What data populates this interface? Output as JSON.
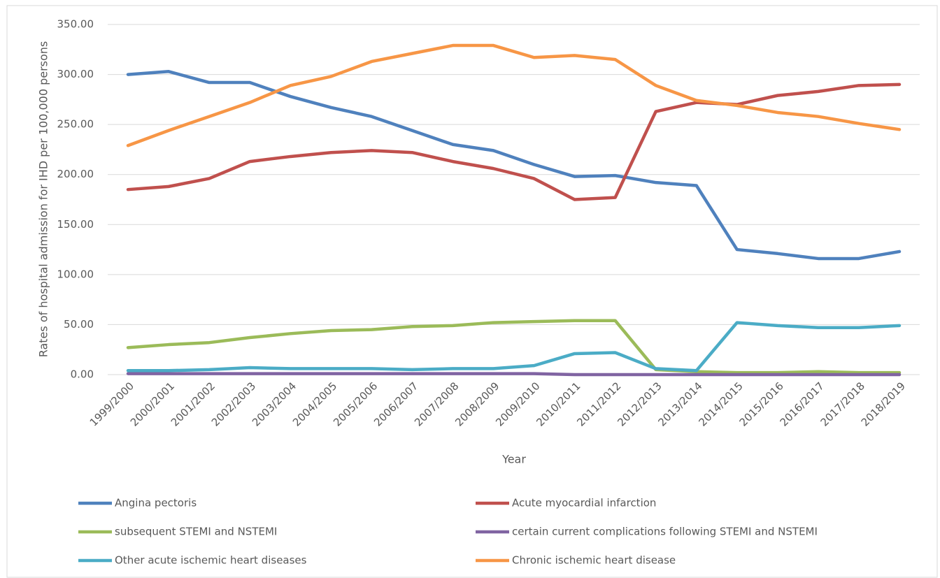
{
  "chart_data": {
    "type": "line",
    "y_label": "Rates of hospital admission for IHD per 100,000 persons",
    "x_label": "Year",
    "categories": [
      "1999/2000",
      "2000/2001",
      "2001/2002",
      "2002/2003",
      "2003/2004",
      "2004/2005",
      "2005/2006",
      "2006/2007",
      "2007/2008",
      "2008/2009",
      "2009/2010",
      "2010/2011",
      "2011/2012",
      "2012/2013",
      "2013/2014",
      "2014/2015",
      "2015/2016",
      "2016/2017",
      "2017/2018",
      "2018/2019"
    ],
    "series": [
      {
        "name": "Angina pectoris",
        "color": "#4f81bd",
        "values": [
          300,
          303,
          292,
          292,
          278,
          267,
          258,
          244,
          230,
          224,
          210,
          198,
          199,
          192,
          189,
          125,
          121,
          116,
          116,
          123
        ]
      },
      {
        "name": "Acute myocardial infarction",
        "color": "#c0504d",
        "values": [
          185,
          188,
          196,
          213,
          218,
          222,
          224,
          222,
          213,
          206,
          196,
          175,
          177,
          263,
          272,
          270,
          279,
          283,
          289,
          290
        ]
      },
      {
        "name": "subsequent STEMI and NSTEMI",
        "color": "#9bbb59",
        "values": [
          27,
          30,
          32,
          37,
          41,
          44,
          45,
          48,
          49,
          52,
          53,
          54,
          54,
          5,
          3,
          2,
          2,
          3,
          2,
          2
        ]
      },
      {
        "name": "certain current complications following STEMI and NSTEMI",
        "color": "#8064a2",
        "values": [
          1,
          1,
          1,
          1,
          1,
          1,
          1,
          1,
          1,
          1,
          1,
          0,
          0,
          0,
          0,
          0,
          0,
          0,
          0,
          0
        ]
      },
      {
        "name": "Other acute ischemic heart diseases",
        "color": "#4bacc6",
        "values": [
          4,
          4,
          5,
          7,
          6,
          6,
          6,
          5,
          6,
          6,
          9,
          21,
          22,
          6,
          4,
          52,
          49,
          47,
          47,
          49
        ]
      },
      {
        "name": "Chronic ischemic heart disease",
        "color": "#f79646",
        "values": [
          229,
          244,
          258,
          272,
          289,
          298,
          313,
          321,
          329,
          329,
          317,
          319,
          315,
          289,
          274,
          269,
          262,
          258,
          251,
          245
        ]
      }
    ],
    "ylim": [
      0,
      350
    ],
    "yticks": [
      {
        "value": 0,
        "label": "0.00"
      },
      {
        "value": 50,
        "label": "50.00"
      },
      {
        "value": 100,
        "label": "100.00"
      },
      {
        "value": 150,
        "label": "150.00"
      },
      {
        "value": 200,
        "label": "200.00"
      },
      {
        "value": 250,
        "label": "250.00"
      },
      {
        "value": 300,
        "label": "300.00"
      },
      {
        "value": 350,
        "label": "350.00"
      }
    ],
    "grid": true,
    "legend": "bottom"
  }
}
